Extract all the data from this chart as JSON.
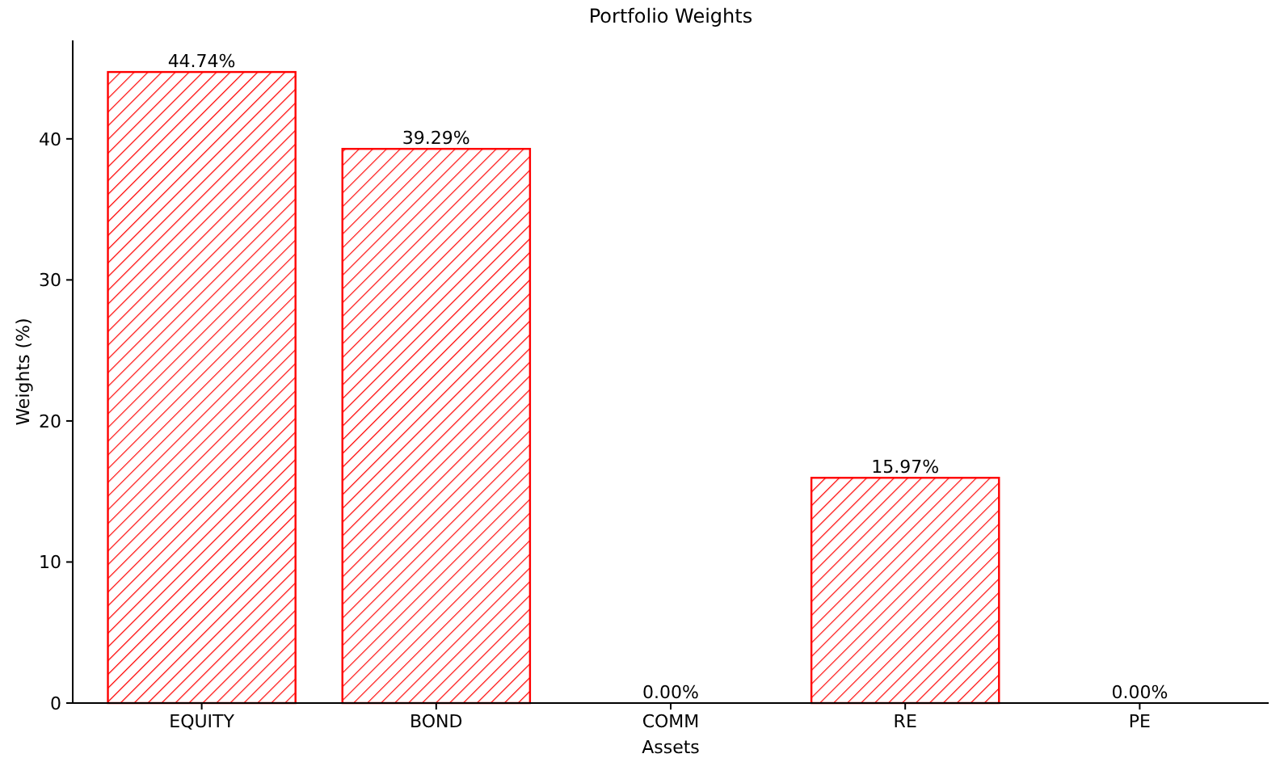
{
  "chart_data": {
    "type": "bar",
    "title": "Portfolio Weights",
    "xlabel": "Assets",
    "ylabel": "Weights (%)",
    "categories": [
      "EQUITY",
      "BOND",
      "COMM",
      "RE",
      "PE"
    ],
    "values": [
      44.74,
      39.29,
      0,
      15.97,
      0
    ],
    "value_labels": [
      "44.74%",
      "39.29%",
      "0.00%",
      "15.97%",
      "0.00%"
    ],
    "color": "#ff0000",
    "ylim": [
      0,
      46.98
    ],
    "yticks": [
      0,
      10,
      20,
      30,
      40
    ],
    "grid": false
  }
}
